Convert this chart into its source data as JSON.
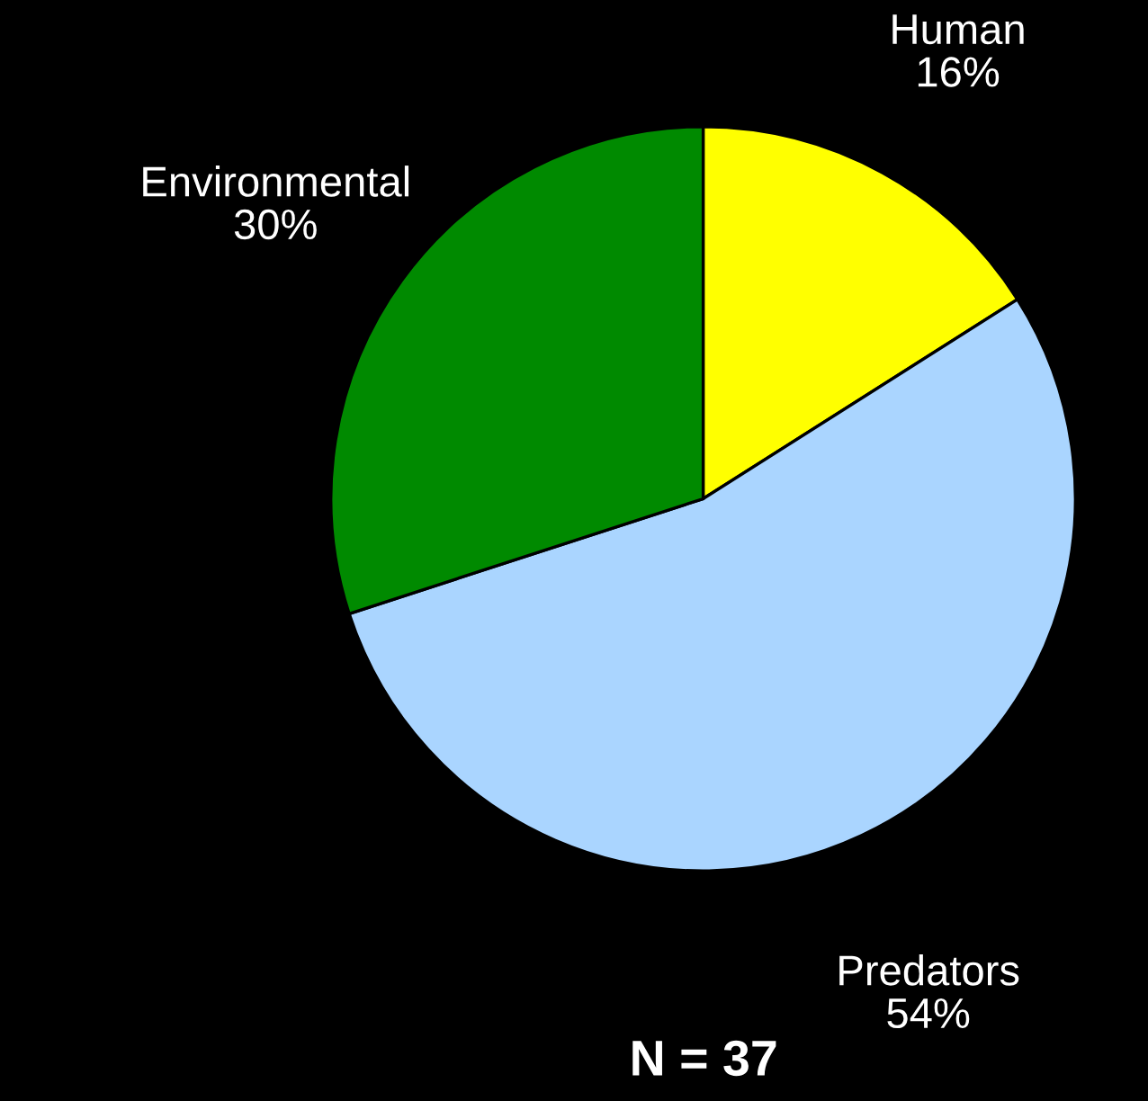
{
  "chart_data": {
    "type": "pie",
    "categories": [
      "Human",
      "Predators",
      "Environmental"
    ],
    "values": [
      16,
      54,
      30
    ],
    "colors": [
      "#ffff00",
      "#aad5ff",
      "#008a00"
    ],
    "value_labels": [
      "16%",
      "54%",
      "30%"
    ],
    "annotations": [
      "N = 37"
    ]
  }
}
